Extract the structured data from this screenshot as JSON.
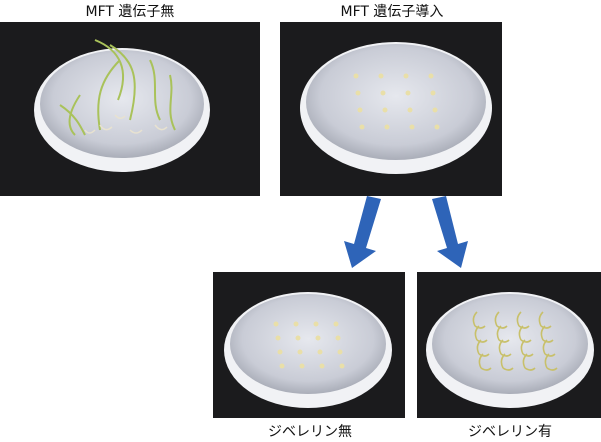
{
  "panels": [
    {
      "label": "MFT 遺伝子無"
    },
    {
      "label": "MFT 遺伝子導入"
    },
    {
      "label": "ジベレリン無"
    },
    {
      "label": "ジベレリン有"
    }
  ]
}
